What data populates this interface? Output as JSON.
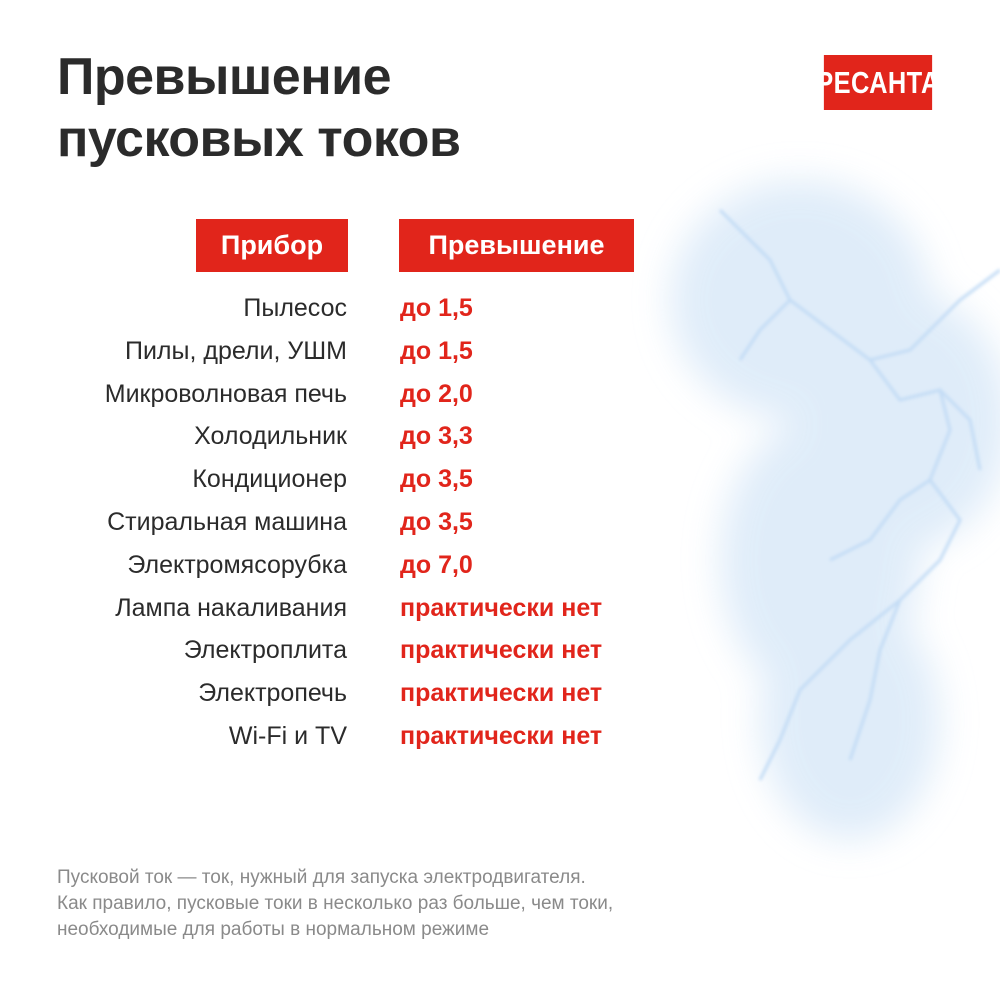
{
  "title_lines": [
    "Превышение",
    "пусковых токов"
  ],
  "logo_text": "РЕСАНТА",
  "colors": {
    "accent": "#e1251b",
    "text": "#2b2b2b",
    "note": "#8a8a8a",
    "lightning": "#cfe3f7"
  },
  "table": {
    "headers": [
      "Прибор",
      "Превышение"
    ],
    "rows": [
      {
        "device": "Пылесос",
        "value": "до 1,5"
      },
      {
        "device": "Пилы, дрели, УШМ",
        "value": "до 1,5"
      },
      {
        "device": "Микроволновая печь",
        "value": "до 2,0"
      },
      {
        "device": "Холодильник",
        "value": "до 3,3"
      },
      {
        "device": "Кондиционер",
        "value": "до 3,5"
      },
      {
        "device": "Стиральная машина",
        "value": "до 3,5"
      },
      {
        "device": "Электромясорубка",
        "value": "до 7,0"
      },
      {
        "device": "Лампа накаливания",
        "value": "практически нет"
      },
      {
        "device": "Электроплита",
        "value": "практически нет"
      },
      {
        "device": "Электропечь",
        "value": "практически нет"
      },
      {
        "device": "Wi-Fi и TV",
        "value": "практически нет"
      }
    ]
  },
  "note_lines": [
    "Пусковой ток — ток, нужный для запуска электродвигателя.",
    "Как правило, пусковые токи в несколько раз больше, чем токи,",
    "необходимые для работы в нормальном режиме"
  ]
}
